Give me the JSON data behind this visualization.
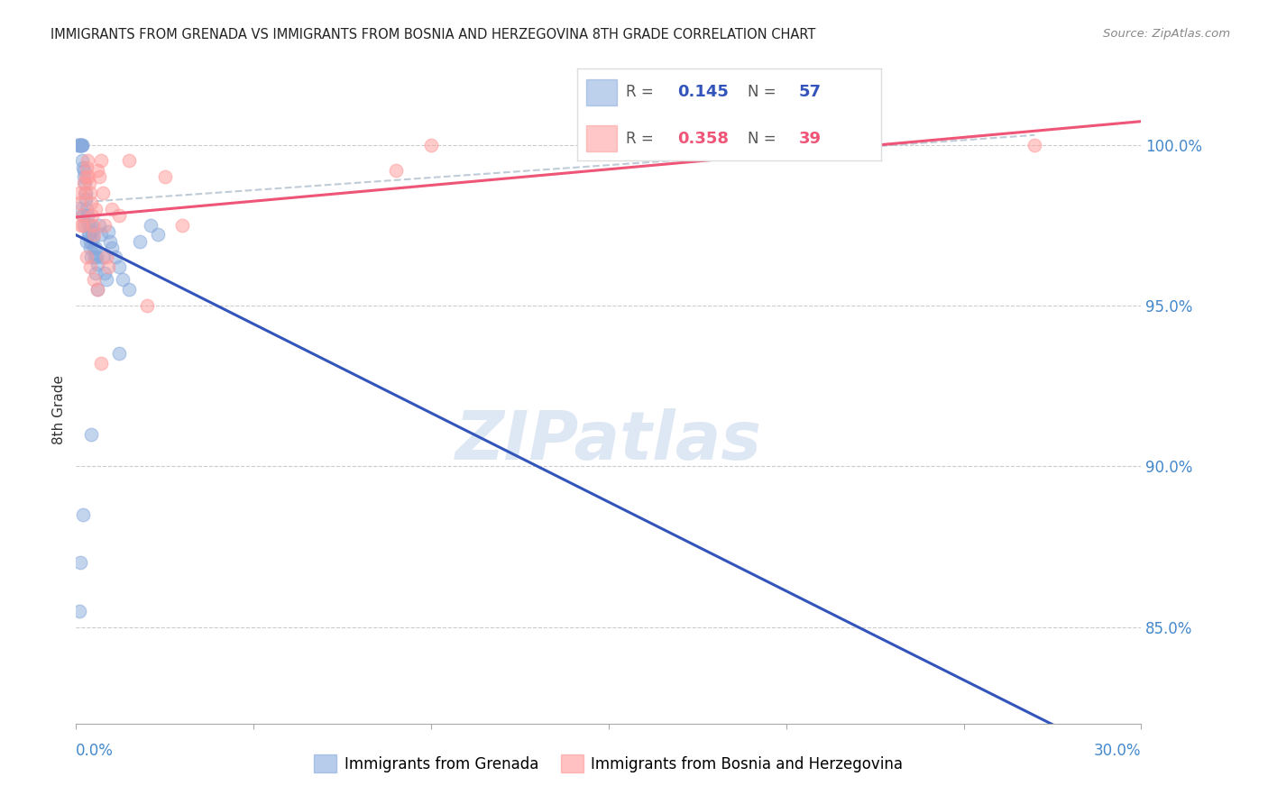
{
  "title": "IMMIGRANTS FROM GRENADA VS IMMIGRANTS FROM BOSNIA AND HERZEGOVINA 8TH GRADE CORRELATION CHART",
  "source": "Source: ZipAtlas.com",
  "ylabel": "8th Grade",
  "legend_label_blue": "Immigrants from Grenada",
  "legend_label_pink": "Immigrants from Bosnia and Herzegovina",
  "R_blue": 0.145,
  "N_blue": 57,
  "R_pink": 0.358,
  "N_pink": 39,
  "xlim": [
    0.0,
    30.0
  ],
  "ylim": [
    82.0,
    101.5
  ],
  "yticks": [
    85.0,
    90.0,
    95.0,
    100.0
  ],
  "color_blue": "#88AADD",
  "color_pink": "#FF9999",
  "color_trendline_blue": "#3355BB",
  "color_trendline_pink": "#EE5577",
  "color_axis_labels": "#4488CC",
  "watermark_color": "#C8D8EE",
  "blue_x": [
    0.05,
    0.08,
    0.1,
    0.12,
    0.13,
    0.15,
    0.16,
    0.17,
    0.18,
    0.2,
    0.22,
    0.23,
    0.25,
    0.27,
    0.28,
    0.3,
    0.32,
    0.35,
    0.38,
    0.4,
    0.42,
    0.45,
    0.48,
    0.5,
    0.52,
    0.55,
    0.58,
    0.6,
    0.65,
    0.7,
    0.75,
    0.8,
    0.85,
    0.9,
    0.95,
    1.0,
    1.1,
    1.2,
    1.3,
    1.5,
    1.8,
    2.1,
    2.3,
    0.15,
    0.2,
    0.25,
    0.3,
    0.35,
    0.4,
    0.42,
    0.55,
    0.6,
    0.42,
    1.2,
    0.2,
    0.12,
    0.08
  ],
  "blue_y": [
    100.0,
    100.0,
    100.0,
    100.0,
    100.0,
    100.0,
    100.0,
    100.0,
    99.5,
    99.3,
    99.2,
    99.0,
    98.8,
    98.5,
    98.3,
    98.0,
    97.8,
    97.5,
    97.2,
    97.0,
    97.5,
    97.3,
    97.1,
    96.8,
    96.5,
    96.8,
    96.5,
    96.3,
    97.5,
    97.2,
    96.5,
    96.0,
    95.8,
    97.3,
    97.0,
    96.8,
    96.5,
    96.2,
    95.8,
    95.5,
    97.0,
    97.5,
    97.2,
    98.0,
    97.8,
    97.5,
    97.0,
    97.2,
    96.8,
    96.5,
    96.0,
    95.5,
    91.0,
    93.5,
    88.5,
    87.0,
    85.5
  ],
  "pink_x": [
    0.08,
    0.1,
    0.15,
    0.18,
    0.2,
    0.22,
    0.25,
    0.27,
    0.3,
    0.32,
    0.35,
    0.38,
    0.4,
    0.42,
    0.45,
    0.48,
    0.5,
    0.55,
    0.6,
    0.65,
    0.7,
    0.75,
    0.8,
    0.85,
    0.9,
    1.0,
    1.2,
    1.5,
    2.0,
    2.5,
    3.0,
    9.0,
    10.0,
    27.0,
    0.3,
    0.4,
    0.5,
    0.6,
    0.7
  ],
  "pink_y": [
    98.2,
    98.5,
    97.5,
    97.8,
    97.5,
    98.8,
    98.5,
    99.0,
    99.3,
    99.5,
    99.0,
    98.8,
    98.5,
    98.2,
    97.8,
    97.5,
    97.2,
    98.0,
    99.2,
    99.0,
    99.5,
    98.5,
    97.5,
    96.5,
    96.2,
    98.0,
    97.8,
    99.5,
    95.0,
    99.0,
    97.5,
    99.2,
    100.0,
    100.0,
    96.5,
    96.2,
    95.8,
    95.5,
    93.2
  ]
}
